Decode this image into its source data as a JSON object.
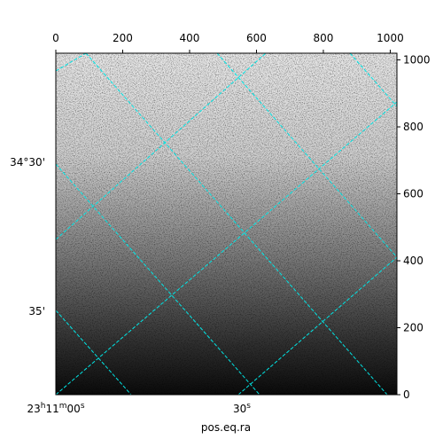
{
  "chart_data": {
    "type": "image",
    "x_label": "pos.eq.ra",
    "xlim": [
      0,
      1020
    ],
    "xticks": [
      0,
      200,
      400,
      600,
      800,
      1000
    ],
    "ylim": [
      0,
      1020
    ],
    "yticks": [
      0,
      200,
      400,
      600,
      800,
      1000
    ],
    "world_y_labels": [
      "34°30'",
      "35'"
    ],
    "world_x_labels": [
      {
        "h": "23",
        "hu": "h",
        "m": "11",
        "mu": "m",
        "s": "00",
        "su": "s"
      },
      {
        "s": "30",
        "su": "s"
      }
    ],
    "grid_color": "#00e5e5"
  }
}
